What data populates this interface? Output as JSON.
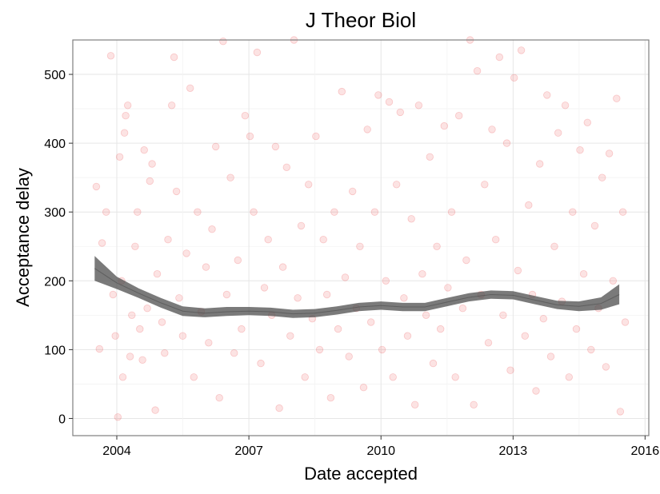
{
  "chart_data": {
    "type": "scatter",
    "title": "J Theor Biol",
    "xlabel": "Date accepted",
    "ylabel": "Acceptance delay",
    "x_axis_type": "date",
    "xlim": [
      "2003-01-01",
      "2016-02-01"
    ],
    "ylim": [
      -25,
      550
    ],
    "x_ticks": [
      {
        "value": "2004-01-01",
        "label": "2004"
      },
      {
        "value": "2007-01-01",
        "label": "2007"
      },
      {
        "value": "2010-01-01",
        "label": "2010"
      },
      {
        "value": "2013-01-01",
        "label": "2013"
      },
      {
        "value": "2016-01-01",
        "label": "2016"
      }
    ],
    "y_ticks": [
      {
        "value": 0,
        "label": "0"
      },
      {
        "value": 100,
        "label": "100"
      },
      {
        "value": 200,
        "label": "200"
      },
      {
        "value": 300,
        "label": "300"
      },
      {
        "value": 400,
        "label": "400"
      },
      {
        "value": 500,
        "label": "500"
      }
    ],
    "grid": true,
    "point_color": "#e41a1c",
    "point_alpha": 0.12,
    "smooth_band_color": "#4d4d4d",
    "series": [
      {
        "kind": "points",
        "points": [
          [
            "2003-07-15",
            337
          ],
          [
            "2003-08-10",
            101
          ],
          [
            "2003-09-01",
            255
          ],
          [
            "2003-10-05",
            300
          ],
          [
            "2003-11-12",
            527
          ],
          [
            "2003-12-01",
            180
          ],
          [
            "2003-12-20",
            120
          ],
          [
            "2004-01-10",
            2
          ],
          [
            "2004-01-25",
            380
          ],
          [
            "2004-02-10",
            200
          ],
          [
            "2004-02-20",
            60
          ],
          [
            "2004-03-05",
            415
          ],
          [
            "2004-03-15",
            440
          ],
          [
            "2004-04-01",
            455
          ],
          [
            "2004-04-20",
            90
          ],
          [
            "2004-05-05",
            150
          ],
          [
            "2004-06-01",
            250
          ],
          [
            "2004-06-20",
            300
          ],
          [
            "2004-07-10",
            130
          ],
          [
            "2004-08-01",
            85
          ],
          [
            "2004-08-15",
            390
          ],
          [
            "2004-09-10",
            160
          ],
          [
            "2004-10-01",
            345
          ],
          [
            "2004-10-20",
            370
          ],
          [
            "2004-11-15",
            12
          ],
          [
            "2004-12-01",
            210
          ],
          [
            "2005-01-10",
            140
          ],
          [
            "2005-02-01",
            95
          ],
          [
            "2005-03-01",
            260
          ],
          [
            "2005-04-01",
            455
          ],
          [
            "2005-04-20",
            525
          ],
          [
            "2005-05-10",
            330
          ],
          [
            "2005-06-01",
            175
          ],
          [
            "2005-07-01",
            120
          ],
          [
            "2005-08-01",
            240
          ],
          [
            "2005-09-01",
            480
          ],
          [
            "2005-10-01",
            60
          ],
          [
            "2005-11-01",
            300
          ],
          [
            "2005-12-01",
            155
          ],
          [
            "2006-01-10",
            220
          ],
          [
            "2006-02-01",
            110
          ],
          [
            "2006-03-01",
            275
          ],
          [
            "2006-04-01",
            395
          ],
          [
            "2006-05-01",
            30
          ],
          [
            "2006-06-01",
            548
          ],
          [
            "2006-07-01",
            180
          ],
          [
            "2006-08-01",
            350
          ],
          [
            "2006-09-01",
            95
          ],
          [
            "2006-10-01",
            230
          ],
          [
            "2006-11-01",
            130
          ],
          [
            "2006-12-01",
            440
          ],
          [
            "2007-01-10",
            410
          ],
          [
            "2007-02-10",
            300
          ],
          [
            "2007-03-10",
            532
          ],
          [
            "2007-04-10",
            80
          ],
          [
            "2007-05-10",
            190
          ],
          [
            "2007-06-10",
            260
          ],
          [
            "2007-07-10",
            150
          ],
          [
            "2007-08-10",
            395
          ],
          [
            "2007-09-10",
            15
          ],
          [
            "2007-10-10",
            220
          ],
          [
            "2007-11-10",
            365
          ],
          [
            "2007-12-10",
            120
          ],
          [
            "2008-01-10",
            550
          ],
          [
            "2008-02-10",
            175
          ],
          [
            "2008-03-10",
            280
          ],
          [
            "2008-04-10",
            60
          ],
          [
            "2008-05-10",
            340
          ],
          [
            "2008-06-10",
            145
          ],
          [
            "2008-07-10",
            410
          ],
          [
            "2008-08-10",
            100
          ],
          [
            "2008-09-10",
            260
          ],
          [
            "2008-10-10",
            180
          ],
          [
            "2008-11-10",
            30
          ],
          [
            "2008-12-10",
            300
          ],
          [
            "2009-01-10",
            130
          ],
          [
            "2009-02-10",
            475
          ],
          [
            "2009-03-10",
            205
          ],
          [
            "2009-04-10",
            90
          ],
          [
            "2009-05-10",
            330
          ],
          [
            "2009-06-10",
            160
          ],
          [
            "2009-07-10",
            250
          ],
          [
            "2009-08-10",
            45
          ],
          [
            "2009-09-10",
            420
          ],
          [
            "2009-10-10",
            140
          ],
          [
            "2009-11-10",
            300
          ],
          [
            "2009-12-10",
            470
          ],
          [
            "2010-01-10",
            100
          ],
          [
            "2010-02-10",
            200
          ],
          [
            "2010-03-10",
            460
          ],
          [
            "2010-04-10",
            60
          ],
          [
            "2010-05-10",
            340
          ],
          [
            "2010-06-10",
            445
          ],
          [
            "2010-07-10",
            175
          ],
          [
            "2010-08-10",
            120
          ],
          [
            "2010-09-10",
            290
          ],
          [
            "2010-10-10",
            20
          ],
          [
            "2010-11-10",
            455
          ],
          [
            "2010-12-10",
            210
          ],
          [
            "2011-01-10",
            150
          ],
          [
            "2011-02-10",
            380
          ],
          [
            "2011-03-10",
            80
          ],
          [
            "2011-04-10",
            250
          ],
          [
            "2011-05-10",
            130
          ],
          [
            "2011-06-10",
            425
          ],
          [
            "2011-07-10",
            190
          ],
          [
            "2011-08-10",
            300
          ],
          [
            "2011-09-10",
            60
          ],
          [
            "2011-10-10",
            440
          ],
          [
            "2011-11-10",
            160
          ],
          [
            "2011-12-10",
            230
          ],
          [
            "2012-01-10",
            550
          ],
          [
            "2012-02-10",
            20
          ],
          [
            "2012-03-10",
            505
          ],
          [
            "2012-04-10",
            180
          ],
          [
            "2012-05-10",
            340
          ],
          [
            "2012-06-10",
            110
          ],
          [
            "2012-07-10",
            420
          ],
          [
            "2012-08-10",
            260
          ],
          [
            "2012-09-10",
            525
          ],
          [
            "2012-10-10",
            150
          ],
          [
            "2012-11-10",
            400
          ],
          [
            "2012-12-10",
            70
          ],
          [
            "2013-01-10",
            495
          ],
          [
            "2013-02-10",
            215
          ],
          [
            "2013-03-10",
            535
          ],
          [
            "2013-04-10",
            120
          ],
          [
            "2013-05-10",
            310
          ],
          [
            "2013-06-10",
            180
          ],
          [
            "2013-07-10",
            40
          ],
          [
            "2013-08-10",
            370
          ],
          [
            "2013-09-10",
            145
          ],
          [
            "2013-10-10",
            470
          ],
          [
            "2013-11-10",
            90
          ],
          [
            "2013-12-10",
            250
          ],
          [
            "2014-01-10",
            415
          ],
          [
            "2014-02-10",
            170
          ],
          [
            "2014-03-10",
            455
          ],
          [
            "2014-04-10",
            60
          ],
          [
            "2014-05-10",
            300
          ],
          [
            "2014-06-10",
            130
          ],
          [
            "2014-07-10",
            390
          ],
          [
            "2014-08-10",
            210
          ],
          [
            "2014-09-10",
            430
          ],
          [
            "2014-10-10",
            100
          ],
          [
            "2014-11-10",
            280
          ],
          [
            "2014-12-10",
            160
          ],
          [
            "2015-01-10",
            350
          ],
          [
            "2015-02-10",
            75
          ],
          [
            "2015-03-10",
            385
          ],
          [
            "2015-04-10",
            200
          ],
          [
            "2015-05-10",
            465
          ],
          [
            "2015-06-10",
            10
          ],
          [
            "2015-07-01",
            300
          ],
          [
            "2015-07-20",
            140
          ]
        ]
      },
      {
        "kind": "smooth",
        "x": [
          "2003-07-01",
          "2004-01-01",
          "2004-07-01",
          "2005-01-01",
          "2005-07-01",
          "2006-01-01",
          "2006-07-01",
          "2007-01-01",
          "2007-07-01",
          "2008-01-01",
          "2008-07-01",
          "2009-01-01",
          "2009-07-01",
          "2010-01-01",
          "2010-07-01",
          "2011-01-01",
          "2011-07-01",
          "2012-01-01",
          "2012-07-01",
          "2013-01-01",
          "2013-07-01",
          "2014-01-01",
          "2014-07-01",
          "2015-01-01",
          "2015-06-01"
        ],
        "y": [
          218,
          197,
          182,
          168,
          156,
          153,
          155,
          156,
          155,
          152,
          153,
          157,
          162,
          164,
          162,
          162,
          169,
          176,
          180,
          179,
          172,
          165,
          163,
          167,
          180
        ],
        "y_lower": [
          200,
          188,
          175,
          161,
          149,
          147,
          149,
          150,
          149,
          146,
          147,
          151,
          156,
          158,
          156,
          156,
          163,
          170,
          174,
          173,
          166,
          159,
          156,
          158,
          166
        ],
        "y_upper": [
          236,
          206,
          189,
          175,
          163,
          160,
          162,
          162,
          161,
          158,
          159,
          163,
          168,
          170,
          168,
          168,
          175,
          182,
          186,
          185,
          178,
          171,
          170,
          176,
          195
        ]
      }
    ]
  }
}
